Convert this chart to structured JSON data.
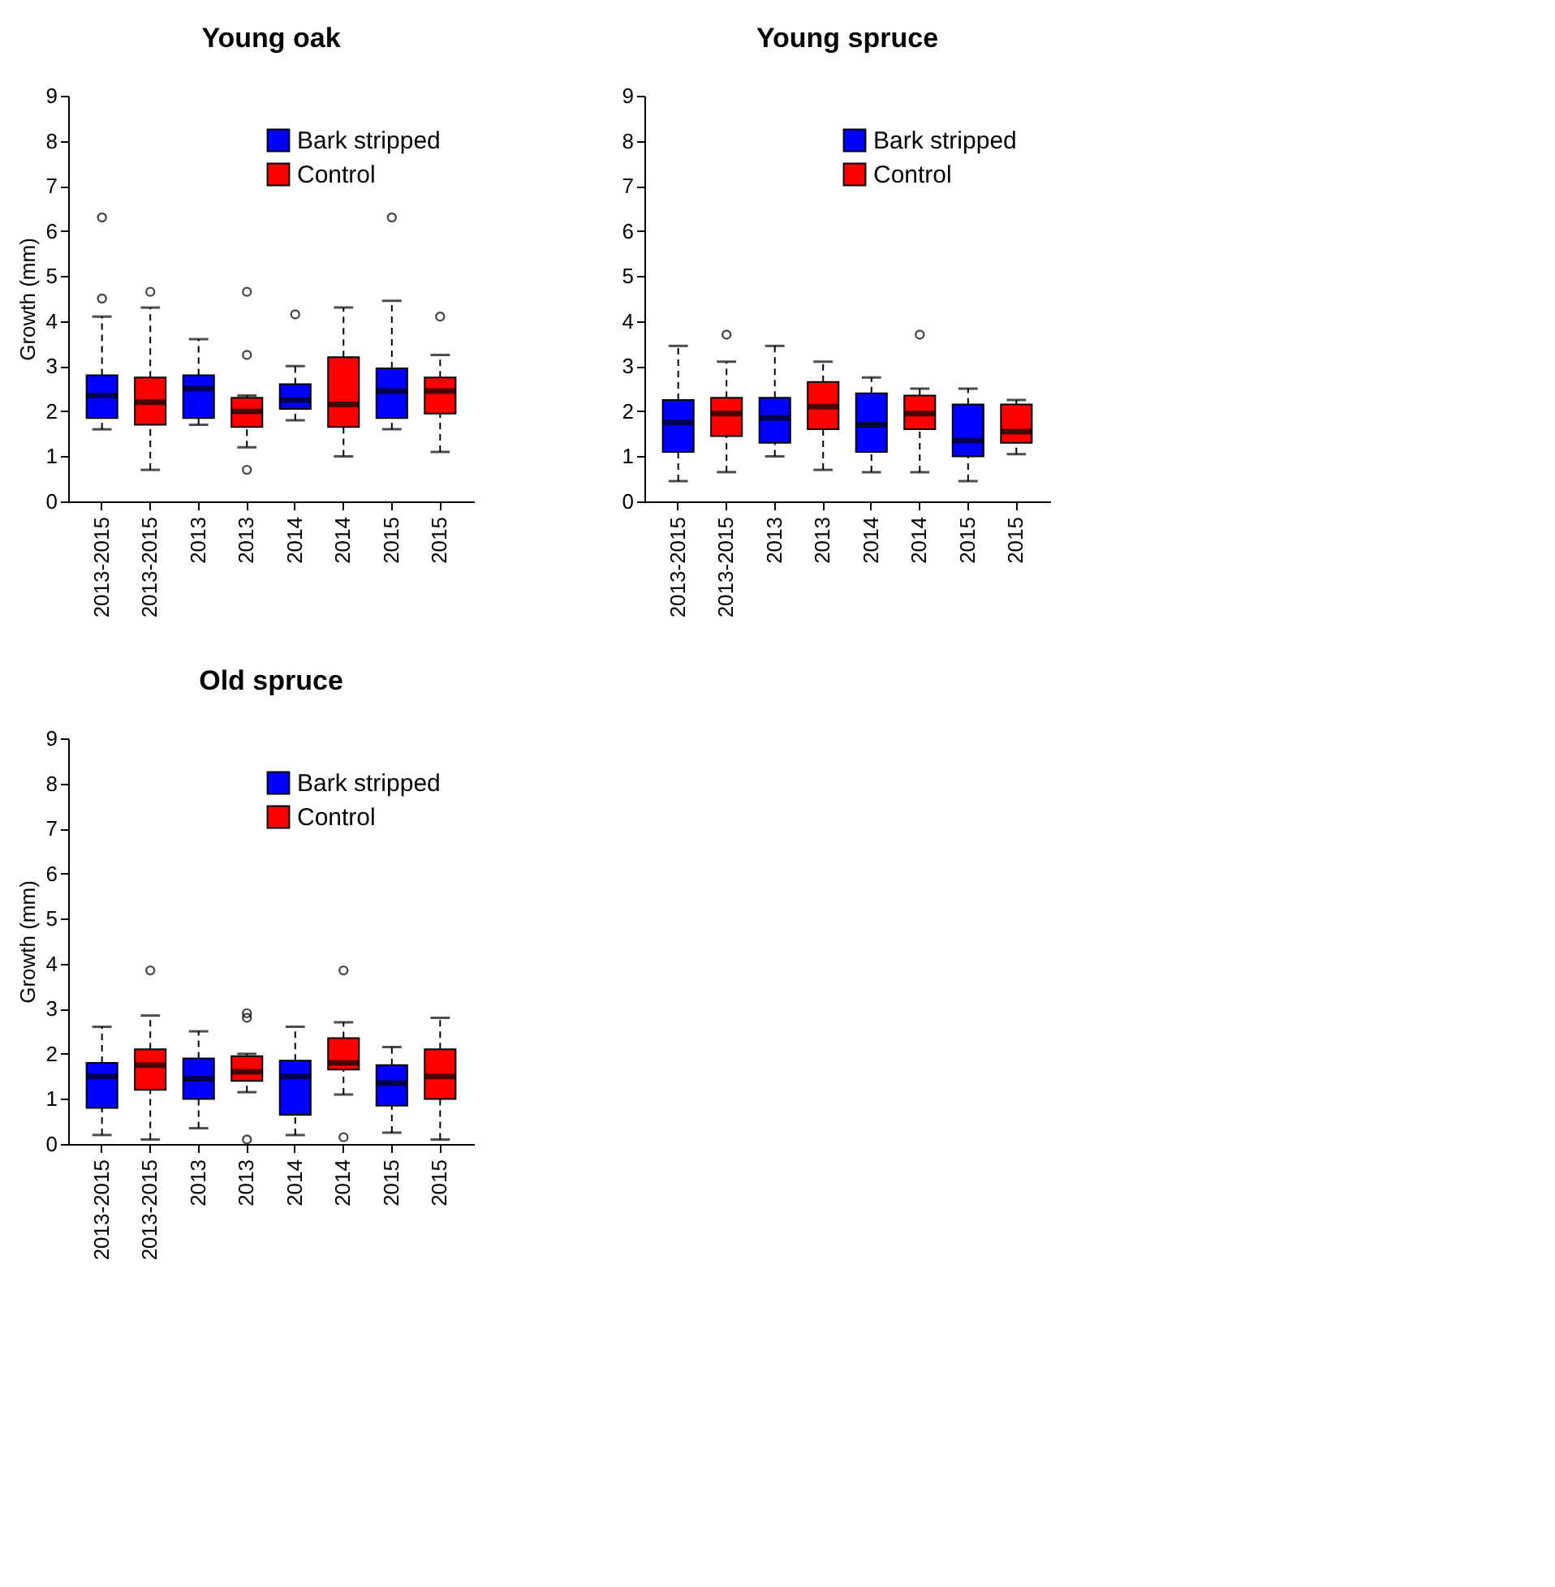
{
  "chart_data": [
    {
      "type": "box",
      "title": "Young oak",
      "ylabel": "Growth (mm)",
      "categories": [
        "2013-2015",
        "2013-2015",
        "2013",
        "2013",
        "2014",
        "2014",
        "2015",
        "2015"
      ],
      "ylim": [
        0,
        9
      ],
      "yticks": [
        0,
        1,
        2,
        3,
        4,
        5,
        6,
        7,
        8,
        9
      ],
      "legend": "top right",
      "series": [
        {
          "name": "Bark stripped",
          "color": "#0000ff",
          "boxes": [
            {
              "low": 1.6,
              "q1": 1.85,
              "median": 2.35,
              "q3": 2.8,
              "high": 4.1,
              "outliers": [
                4.5,
                6.3
              ]
            },
            null,
            {
              "low": 1.7,
              "q1": 1.85,
              "median": 2.5,
              "q3": 2.8,
              "high": 3.6
            },
            null,
            {
              "low": 1.8,
              "q1": 2.05,
              "median": 2.25,
              "q3": 2.6,
              "high": 3.0,
              "outliers": [
                4.15
              ]
            },
            null,
            {
              "low": 1.6,
              "q1": 1.85,
              "median": 2.45,
              "q3": 2.95,
              "high": 4.45,
              "outliers": [
                6.3
              ]
            },
            null
          ]
        },
        {
          "name": "Control",
          "color": "#ff0000",
          "boxes": [
            null,
            {
              "low": 0.7,
              "q1": 1.7,
              "median": 2.2,
              "q3": 2.75,
              "high": 4.3,
              "outliers": [
                4.65
              ]
            },
            null,
            {
              "low": 1.2,
              "q1": 1.65,
              "median": 2.0,
              "q3": 2.3,
              "high": 2.35,
              "outliers": [
                0.7,
                3.25,
                4.65
              ]
            },
            null,
            {
              "low": 1.0,
              "q1": 1.65,
              "median": 2.15,
              "q3": 3.2,
              "high": 4.3
            },
            null,
            {
              "low": 1.1,
              "q1": 1.95,
              "median": 2.45,
              "q3": 2.75,
              "high": 3.25,
              "outliers": [
                4.1
              ]
            }
          ]
        }
      ]
    },
    {
      "type": "box",
      "title": "Young spruce",
      "categories": [
        "2013-2015",
        "2013-2015",
        "2013",
        "2013",
        "2014",
        "2014",
        "2015",
        "2015"
      ],
      "ylim": [
        0,
        9
      ],
      "yticks": [
        0,
        1,
        2,
        3,
        4,
        5,
        6,
        7,
        8,
        9
      ],
      "legend": "top right",
      "series": [
        {
          "name": "Bark stripped",
          "color": "#0000ff",
          "boxes": [
            {
              "low": 0.45,
              "q1": 1.1,
              "median": 1.75,
              "q3": 2.25,
              "high": 3.45
            },
            null,
            {
              "low": 1.0,
              "q1": 1.3,
              "median": 1.85,
              "q3": 2.3,
              "high": 3.45
            },
            null,
            {
              "low": 0.65,
              "q1": 1.1,
              "median": 1.7,
              "q3": 2.4,
              "high": 2.75
            },
            null,
            {
              "low": 0.45,
              "q1": 1.0,
              "median": 1.35,
              "q3": 2.15,
              "high": 2.5
            },
            null
          ]
        },
        {
          "name": "Control",
          "color": "#ff0000",
          "boxes": [
            null,
            {
              "low": 0.65,
              "q1": 1.45,
              "median": 1.95,
              "q3": 2.3,
              "high": 3.1,
              "outliers": [
                3.7
              ]
            },
            null,
            {
              "low": 0.7,
              "q1": 1.6,
              "median": 2.1,
              "q3": 2.65,
              "high": 3.1
            },
            null,
            {
              "low": 0.65,
              "q1": 1.6,
              "median": 1.95,
              "q3": 2.35,
              "high": 2.5,
              "outliers": [
                3.7
              ]
            },
            null,
            {
              "low": 1.05,
              "q1": 1.3,
              "median": 1.55,
              "q3": 2.15,
              "high": 2.25
            }
          ]
        }
      ]
    },
    {
      "type": "box",
      "title": "Old spruce",
      "ylabel": "Growth (mm)",
      "categories": [
        "2013-2015",
        "2013-2015",
        "2013",
        "2013",
        "2014",
        "2014",
        "2015",
        "2015"
      ],
      "ylim": [
        0,
        9
      ],
      "yticks": [
        0,
        1,
        2,
        3,
        4,
        5,
        6,
        7,
        8,
        9
      ],
      "legend": "top right",
      "series": [
        {
          "name": "Bark stripped",
          "color": "#0000ff",
          "boxes": [
            {
              "low": 0.2,
              "q1": 0.8,
              "median": 1.5,
              "q3": 1.8,
              "high": 2.6
            },
            null,
            {
              "low": 0.35,
              "q1": 1.0,
              "median": 1.45,
              "q3": 1.9,
              "high": 2.5
            },
            null,
            {
              "low": 0.2,
              "q1": 0.65,
              "median": 1.5,
              "q3": 1.85,
              "high": 2.6
            },
            null,
            {
              "low": 0.25,
              "q1": 0.85,
              "median": 1.35,
              "q3": 1.75,
              "high": 2.15
            },
            null
          ]
        },
        {
          "name": "Control",
          "color": "#ff0000",
          "boxes": [
            null,
            {
              "low": 0.1,
              "q1": 1.2,
              "median": 1.75,
              "q3": 2.1,
              "high": 2.85,
              "outliers": [
                3.85
              ]
            },
            null,
            {
              "low": 1.15,
              "q1": 1.4,
              "median": 1.6,
              "q3": 1.95,
              "high": 2.0,
              "outliers": [
                0.1,
                2.8,
                2.9
              ]
            },
            null,
            {
              "low": 1.1,
              "q1": 1.65,
              "median": 1.8,
              "q3": 2.35,
              "high": 2.7,
              "outliers": [
                0.15,
                3.85
              ]
            },
            null,
            {
              "low": 0.1,
              "q1": 1.0,
              "median": 1.5,
              "q3": 2.1,
              "high": 2.8
            }
          ]
        }
      ]
    }
  ]
}
